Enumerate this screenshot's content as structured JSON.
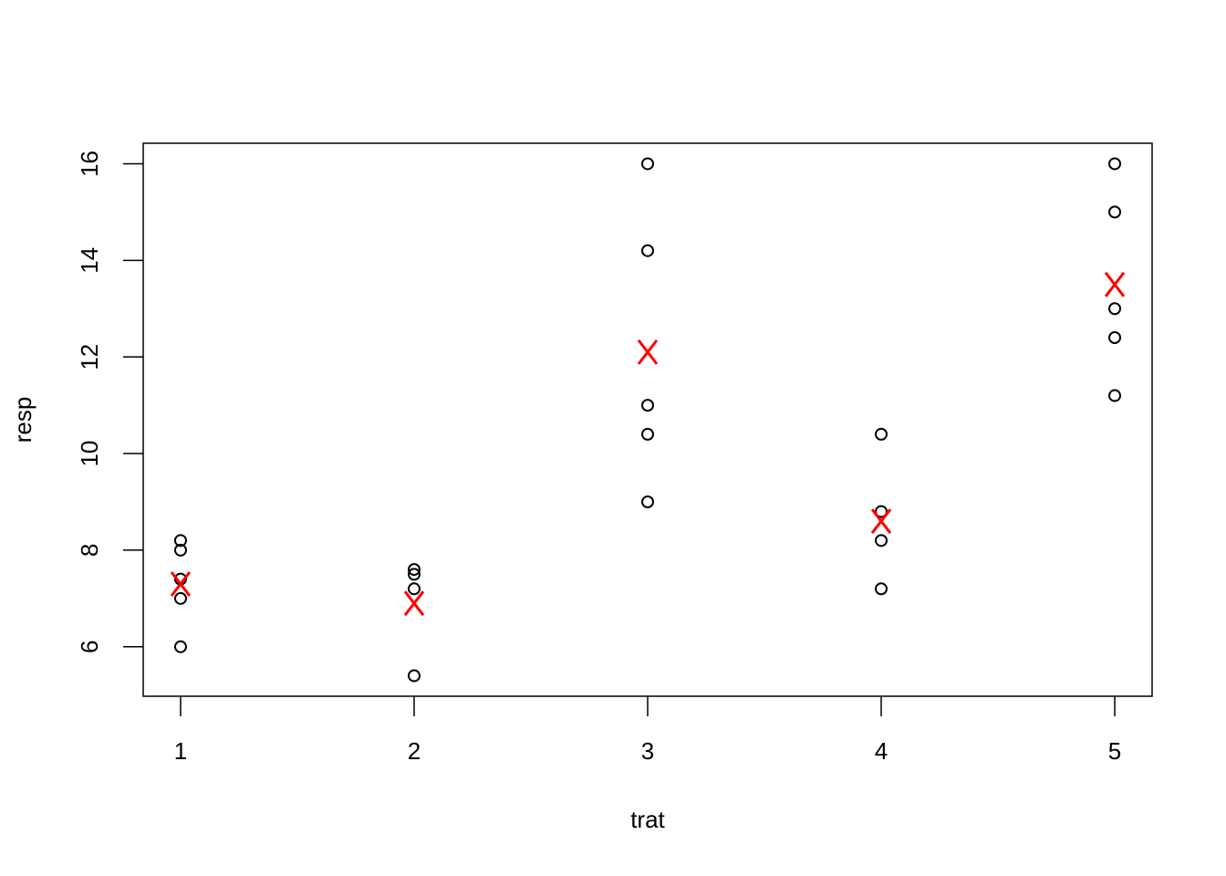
{
  "chart_data": {
    "type": "scatter",
    "x_label": "trat",
    "y_label": "resp",
    "xlim": [
      0.84,
      5.16
    ],
    "ylim": [
      4.976,
      16.424
    ],
    "xticks": [
      1,
      2,
      3,
      4,
      5
    ],
    "yticks": [
      6,
      8,
      10,
      12,
      14,
      16
    ],
    "series": [
      {
        "color": "#000000",
        "marker": "circle",
        "x": [
          1,
          1,
          1,
          1,
          1,
          2,
          2,
          2,
          2,
          3,
          3,
          3,
          3,
          3,
          4,
          4,
          4,
          4,
          5,
          5,
          5,
          5,
          5
        ],
        "values": [
          8.2,
          8.0,
          7.4,
          7.0,
          6.0,
          7.6,
          7.5,
          7.2,
          5.4,
          16,
          14.2,
          11,
          10.4,
          9,
          10.4,
          8.8,
          8.2,
          7.2,
          16,
          15,
          13,
          12.4,
          11.2
        ]
      },
      {
        "color": "#ff0000",
        "marker": "x",
        "x": [
          1,
          2,
          3,
          4,
          5
        ],
        "values": [
          7.3,
          6.9,
          12.1,
          8.6,
          13.5
        ]
      }
    ]
  }
}
